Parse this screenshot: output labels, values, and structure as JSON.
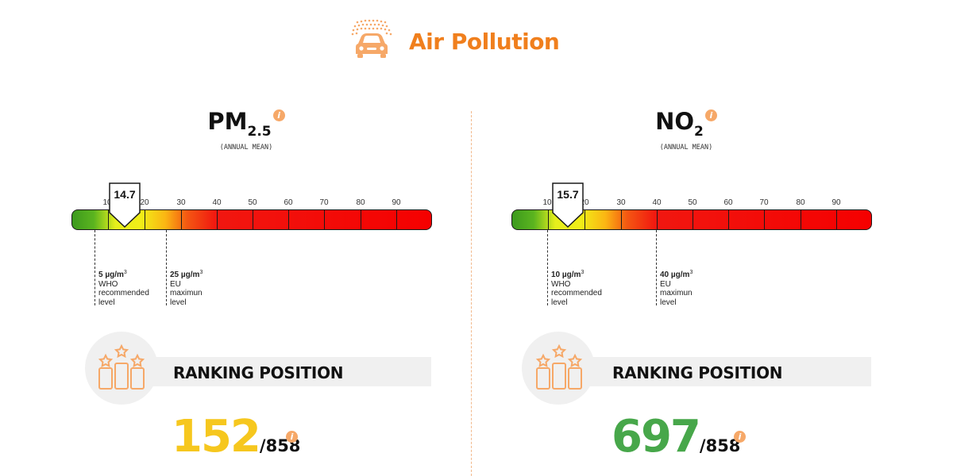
{
  "header": {
    "title": "Air Pollution",
    "icon": "car-pollution-icon",
    "color": "#f07f1d"
  },
  "panels": [
    {
      "pollutant": "PM",
      "subscript": "2.5",
      "note": "(ANNUAL MEAN)",
      "scale_ticks": [
        "10",
        "20",
        "30",
        "40",
        "50",
        "60",
        "70",
        "80",
        "90"
      ],
      "value": "14.7",
      "refs": [
        {
          "value": "5 µg/m",
          "unit_sup": "3",
          "lines": [
            "WHO",
            "recommended",
            "level"
          ]
        },
        {
          "value": "25 µg/m",
          "unit_sup": "3",
          "lines": [
            "EU",
            "maximun",
            "level"
          ]
        }
      ],
      "ranking_label": "RANKING POSITION",
      "rank": "152",
      "rank_total": "/858",
      "rank_color": "#f6c71e"
    },
    {
      "pollutant": "NO",
      "subscript": "2",
      "note": "(ANNUAL MEAN)",
      "scale_ticks": [
        "10",
        "20",
        "30",
        "40",
        "50",
        "60",
        "70",
        "80",
        "90"
      ],
      "value": "15.7",
      "refs": [
        {
          "value": "10 µg/m",
          "unit_sup": "3",
          "lines": [
            "WHO",
            "recommended",
            "level"
          ]
        },
        {
          "value": "40 µg/m",
          "unit_sup": "3",
          "lines": [
            "EU",
            "maximun",
            "level"
          ]
        }
      ],
      "ranking_label": "RANKING POSITION",
      "rank": "697",
      "rank_total": "/858",
      "rank_color": "#47a74a"
    }
  ]
}
